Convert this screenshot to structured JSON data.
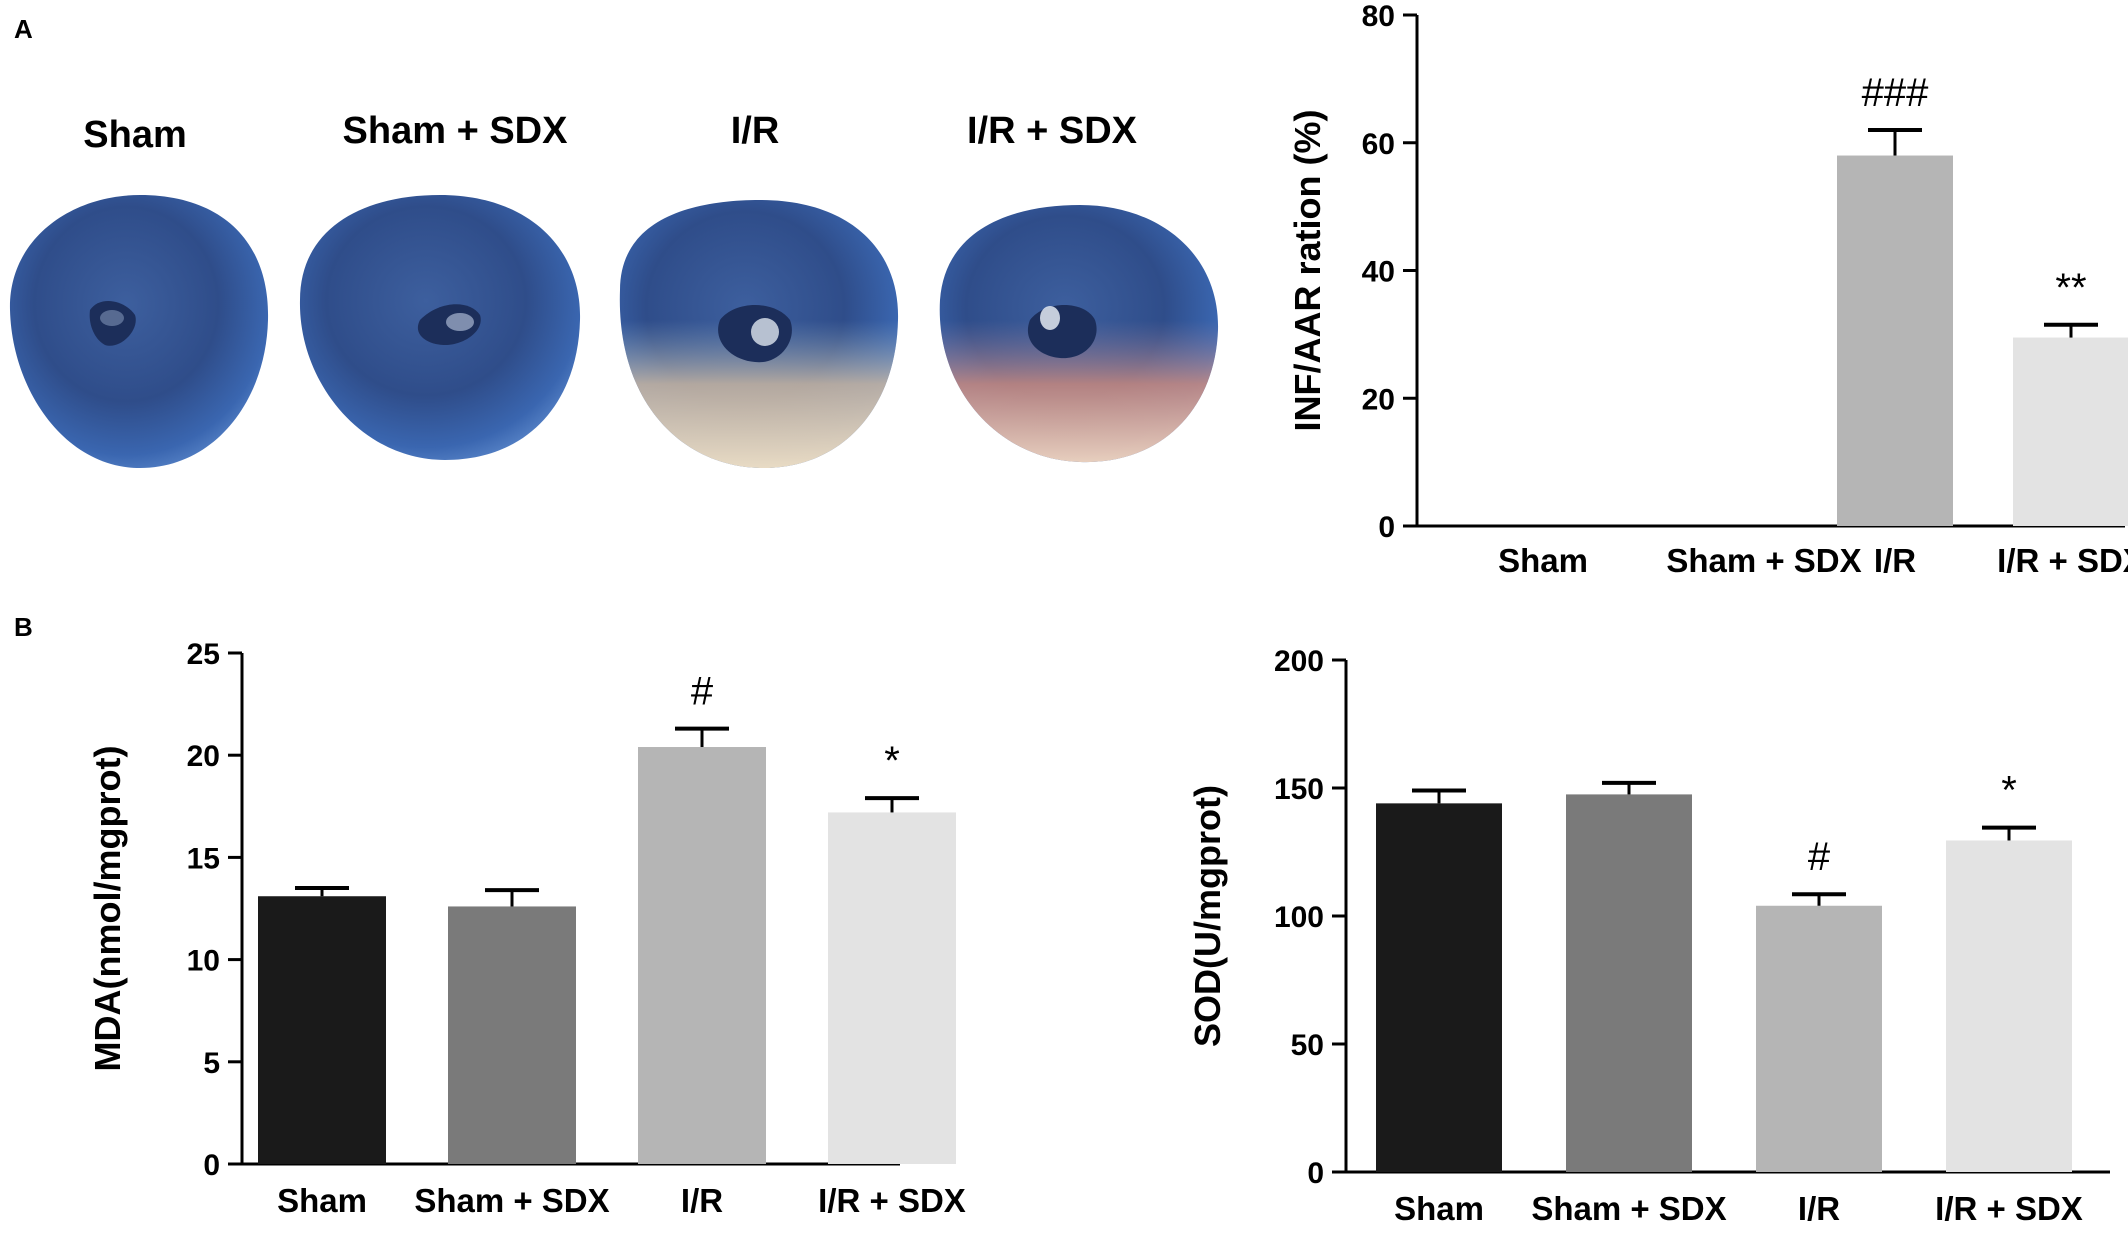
{
  "panels": {
    "a_label": "A",
    "b_label": "B"
  },
  "heart_photos": [
    {
      "label": "Sham",
      "infarct": false
    },
    {
      "label": "Sham + SDX",
      "infarct": false
    },
    {
      "label": "I/R",
      "infarct": true
    },
    {
      "label": "I/R + SDX",
      "infarct": true
    }
  ],
  "chart_data": [
    {
      "type": "bar",
      "ylabel": "INF/AAR ration (%)",
      "categories": [
        "Sham",
        "Sham + SDX",
        "I/R",
        "I/R + SDX"
      ],
      "values": [
        0,
        0,
        58,
        29.5
      ],
      "errors": [
        0,
        0,
        4,
        2
      ],
      "annotations": [
        "",
        "",
        "###",
        "**"
      ],
      "bar_colors": [
        "#1a1a1a",
        "#7a7a7a",
        "#b5b5b5",
        "#e3e3e3"
      ],
      "ylim": [
        0,
        80
      ],
      "yticks": [
        0,
        20,
        40,
        60,
        80
      ]
    },
    {
      "type": "bar",
      "ylabel": "MDA(nmol/mgprot)",
      "categories": [
        "Sham",
        "Sham + SDX",
        "I/R",
        "I/R + SDX"
      ],
      "values": [
        13.1,
        12.6,
        20.4,
        17.2
      ],
      "errors": [
        0.4,
        0.8,
        0.9,
        0.7
      ],
      "annotations": [
        "",
        "",
        "#",
        "*"
      ],
      "bar_colors": [
        "#1a1a1a",
        "#7a7a7a",
        "#b5b5b5",
        "#e3e3e3"
      ],
      "ylim": [
        0,
        25
      ],
      "yticks": [
        0,
        5,
        10,
        15,
        20,
        25
      ]
    },
    {
      "type": "bar",
      "ylabel": "SOD(U/mgprot)",
      "categories": [
        "Sham",
        "Sham + SDX",
        "I/R",
        "I/R + SDX"
      ],
      "values": [
        144,
        147.5,
        104,
        129.5
      ],
      "errors": [
        5,
        4.5,
        4.5,
        5
      ],
      "annotations": [
        "",
        "",
        "#",
        "*"
      ],
      "bar_colors": [
        "#1a1a1a",
        "#7a7a7a",
        "#b5b5b5",
        "#e3e3e3"
      ],
      "ylim": [
        0,
        200
      ],
      "yticks": [
        0,
        50,
        100,
        150,
        200
      ]
    }
  ]
}
